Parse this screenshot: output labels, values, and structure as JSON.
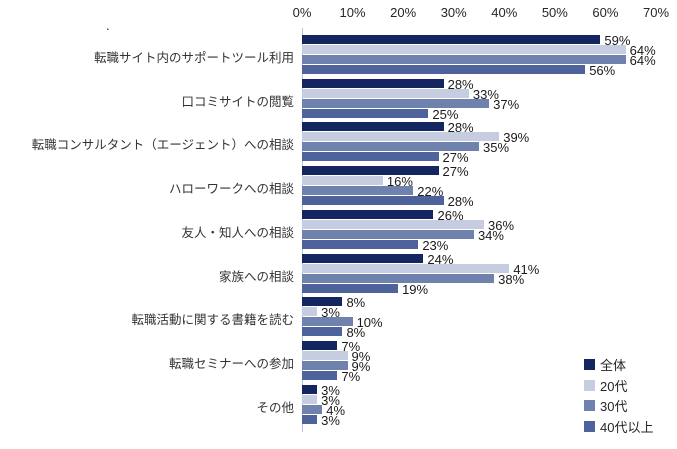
{
  "page": {
    "stray_mark": "."
  },
  "chart_data": {
    "type": "bar",
    "orientation": "horizontal",
    "title": "",
    "xlabel": "",
    "ylabel": "",
    "grid": false,
    "x_axis": {
      "min": 0,
      "max": 70,
      "unit": "%",
      "tick_labels": [
        "0%",
        "10%",
        "20%",
        "30%",
        "40%",
        "50%",
        "60%",
        "70%"
      ]
    },
    "categories": [
      "転職サイト内のサポートツール利用",
      "口コミサイトの閲覧",
      "転職コンサルタント（エージェント）への相談",
      "ハローワークへの相談",
      "友人・知人への相談",
      "家族への相談",
      "転職活動に関する書籍を読む",
      "転職セミナーへの参加",
      "その他"
    ],
    "series": [
      {
        "name": "全体",
        "color": "#14265f",
        "values": [
          59,
          28,
          28,
          27,
          26,
          24,
          8,
          7,
          3
        ]
      },
      {
        "name": "20代",
        "color": "#c7cde0",
        "values": [
          64,
          33,
          39,
          16,
          36,
          41,
          3,
          9,
          3
        ]
      },
      {
        "name": "30代",
        "color": "#6f81ad",
        "values": [
          64,
          37,
          35,
          22,
          34,
          38,
          10,
          9,
          4
        ]
      },
      {
        "name": "40代以上",
        "color": "#4e629b",
        "values": [
          56,
          25,
          27,
          28,
          23,
          19,
          8,
          7,
          3
        ]
      }
    ],
    "value_label_format": "{v}%",
    "legend": {
      "position": "bottom-right",
      "items": [
        "全体",
        "20代",
        "30代",
        "40代以上"
      ]
    }
  }
}
